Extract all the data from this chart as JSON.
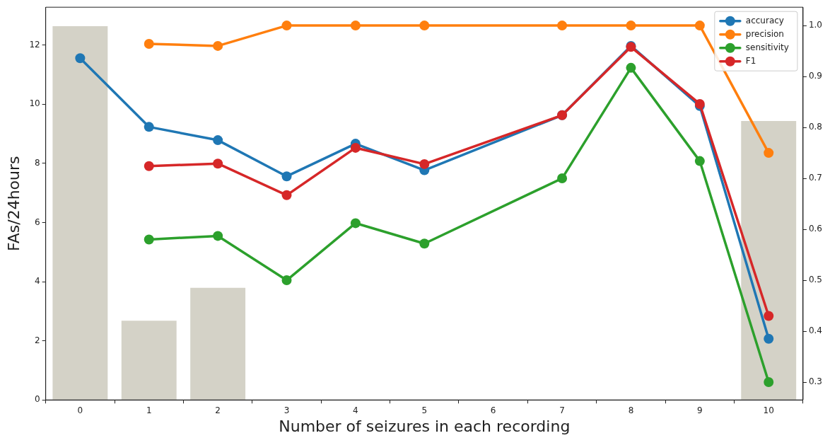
{
  "chart_data": {
    "type": "line",
    "xlabel": "Number of seizures in each recording",
    "ylabel": "FAs/24hours",
    "categories": [
      "0",
      "1",
      "2",
      "3",
      "4",
      "5",
      "6",
      "7",
      "8",
      "9",
      "10"
    ],
    "series": [
      {
        "type": "bar",
        "color": "#d4d2c7",
        "values": [
          12.64,
          2.68,
          3.79,
          null,
          null,
          null,
          null,
          null,
          null,
          null,
          9.43
        ]
      },
      {
        "name": "accuracy",
        "color": "#1f77b4",
        "axis": "y2",
        "values": [
          0.936,
          0.801,
          0.775,
          0.704,
          0.768,
          0.716,
          null,
          0.824,
          0.96,
          0.842,
          0.385
        ]
      },
      {
        "name": "precision",
        "color": "#ff7f0e",
        "axis": "y2",
        "values": [
          null,
          0.964,
          0.96,
          1.0,
          1.0,
          1.0,
          null,
          1.0,
          1.0,
          1.0,
          0.75
        ]
      },
      {
        "name": "sensitivity",
        "color": "#2ca02c",
        "axis": "y2",
        "values": [
          null,
          0.58,
          0.587,
          0.5,
          0.612,
          0.572,
          null,
          0.7,
          0.917,
          0.734,
          0.3
        ]
      },
      {
        "name": "F1",
        "color": "#d62728",
        "axis": "y2",
        "values": [
          null,
          0.724,
          0.729,
          0.667,
          0.76,
          0.728,
          null,
          0.824,
          0.958,
          0.846,
          0.43
        ]
      }
    ],
    "ylim": [
      0,
      13.28
    ],
    "yticks": [
      0,
      2,
      4,
      6,
      8,
      10,
      12
    ],
    "y2lim": [
      0.265,
      1.036
    ],
    "y2ticks": [
      0.3,
      0.4,
      0.5,
      0.6,
      0.7,
      0.8,
      0.9,
      {
        "value": 1.0,
        "label": "1.0"
      }
    ],
    "grid": false,
    "legend": "top right",
    "marker": "circle",
    "line_style": "solid"
  }
}
